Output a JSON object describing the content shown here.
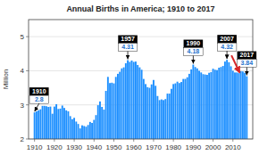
{
  "chart_data": {
    "type": "bar",
    "title": "Annual Births in America; 1910 to 2017",
    "ylabel": "Million",
    "color": "#1e90ff",
    "grid": true,
    "xlim": [
      1907,
      2020
    ],
    "xticks": [
      1910,
      1920,
      1930,
      1940,
      1950,
      1960,
      1970,
      1980,
      1990,
      2000,
      2010
    ],
    "ylim": [
      2.0,
      5.5
    ],
    "yticks": [
      2,
      3,
      4,
      5
    ],
    "x": [
      1910,
      1911,
      1912,
      1913,
      1914,
      1915,
      1916,
      1917,
      1918,
      1919,
      1920,
      1921,
      1922,
      1923,
      1924,
      1925,
      1926,
      1927,
      1928,
      1929,
      1930,
      1931,
      1932,
      1933,
      1934,
      1935,
      1936,
      1937,
      1938,
      1939,
      1940,
      1941,
      1942,
      1943,
      1944,
      1945,
      1946,
      1947,
      1948,
      1949,
      1950,
      1951,
      1952,
      1953,
      1954,
      1955,
      1956,
      1957,
      1958,
      1959,
      1960,
      1961,
      1962,
      1963,
      1964,
      1965,
      1966,
      1967,
      1968,
      1969,
      1970,
      1971,
      1972,
      1973,
      1974,
      1975,
      1976,
      1977,
      1978,
      1979,
      1980,
      1981,
      1982,
      1983,
      1984,
      1985,
      1986,
      1987,
      1988,
      1989,
      1990,
      1991,
      1992,
      1993,
      1994,
      1995,
      1996,
      1997,
      1998,
      1999,
      2000,
      2001,
      2002,
      2003,
      2004,
      2005,
      2006,
      2007,
      2008,
      2009,
      2010,
      2011,
      2012,
      2013,
      2014,
      2015,
      2016,
      2017
    ],
    "values": [
      2.78,
      2.81,
      2.84,
      2.87,
      2.97,
      2.97,
      2.96,
      2.94,
      2.95,
      2.74,
      2.95,
      3.02,
      2.88,
      2.89,
      2.98,
      2.91,
      2.84,
      2.81,
      2.67,
      2.58,
      2.62,
      2.51,
      2.44,
      2.31,
      2.4,
      2.38,
      2.36,
      2.41,
      2.5,
      2.47,
      2.56,
      2.7,
      2.99,
      3.1,
      2.94,
      2.86,
      3.41,
      3.82,
      3.64,
      3.65,
      3.63,
      3.82,
      3.91,
      3.97,
      4.07,
      4.1,
      4.22,
      4.31,
      4.26,
      4.3,
      4.26,
      4.27,
      4.17,
      4.1,
      4.03,
      3.76,
      3.61,
      3.52,
      3.5,
      3.6,
      3.73,
      3.56,
      3.26,
      3.14,
      3.16,
      3.14,
      3.17,
      3.33,
      3.33,
      3.47,
      3.61,
      3.63,
      3.68,
      3.64,
      3.67,
      3.76,
      3.76,
      3.81,
      3.91,
      4.04,
      4.18,
      4.11,
      4.07,
      4.0,
      3.95,
      3.9,
      3.89,
      3.88,
      3.94,
      3.96,
      4.06,
      4.03,
      4.02,
      4.09,
      4.11,
      4.14,
      4.27,
      4.32,
      4.25,
      4.13,
      4.0,
      3.95,
      3.95,
      3.93,
      3.99,
      3.98,
      3.94,
      3.84
    ],
    "annotations": [
      {
        "x": 1910,
        "y": 2.78,
        "labels": [
          "1910",
          "2.8"
        ]
      },
      {
        "x": 1957,
        "y": 4.31,
        "labels": [
          "1957",
          "4.31"
        ]
      },
      {
        "x": 1990,
        "y": 4.18,
        "labels": [
          "1990",
          "4.18"
        ]
      },
      {
        "x": 2007,
        "y": 4.32,
        "labels": [
          "2007",
          "4.32"
        ]
      },
      {
        "x": 2017,
        "y": 3.84,
        "labels": [
          "2017",
          "3.84"
        ]
      }
    ]
  }
}
